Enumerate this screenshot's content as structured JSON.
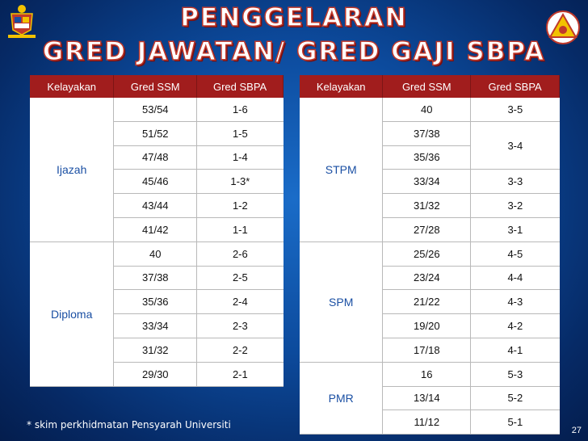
{
  "title": {
    "line1": "PENGGELARAN",
    "line2": "GRED JAWATAN/ GRED GAJI SBPA"
  },
  "headers": [
    "Kelayakan",
    "Gred SSM",
    "Gred SBPA"
  ],
  "left_groups": [
    {
      "qual": "Ijazah",
      "rows": [
        [
          "53/54",
          "1-6"
        ],
        [
          "51/52",
          "1-5"
        ],
        [
          "47/48",
          "1-4"
        ],
        [
          "45/46",
          "1-3*"
        ],
        [
          "43/44",
          "1-2"
        ],
        [
          "41/42",
          "1-1"
        ]
      ]
    },
    {
      "qual": "Diploma",
      "rows": [
        [
          "40",
          "2-6"
        ],
        [
          "37/38",
          "2-5"
        ],
        [
          "35/36",
          "2-4"
        ],
        [
          "33/34",
          "2-3"
        ],
        [
          "31/32",
          "2-2"
        ],
        [
          "29/30",
          "2-1"
        ]
      ]
    }
  ],
  "right_groups": [
    {
      "qual": "STPM",
      "rows": [
        [
          "40",
          "3-5"
        ],
        [
          "37/38",
          "3-4"
        ],
        [
          "35/36",
          ""
        ],
        [
          "33/34",
          "3-3"
        ],
        [
          "31/32",
          "3-2"
        ],
        [
          "27/28",
          "3-1"
        ]
      ]
    },
    {
      "qual": "SPM",
      "rows": [
        [
          "25/26",
          "4-5"
        ],
        [
          "23/24",
          "4-4"
        ],
        [
          "21/22",
          "4-3"
        ],
        [
          "19/20",
          "4-2"
        ],
        [
          "17/18",
          "4-1"
        ]
      ]
    },
    {
      "qual": "PMR",
      "rows": [
        [
          "16",
          "5-3"
        ],
        [
          "13/14",
          "5-2"
        ],
        [
          "11/12",
          "5-1"
        ]
      ]
    }
  ],
  "footnote": "*  skim perkhidmatan Pensyarah Universiti",
  "page_number": "27",
  "colors": {
    "header_bg": "#a11d1d",
    "qual_text": "#1a4fa3",
    "title_outline": "#c0392b"
  },
  "icons": {
    "left": "malaysia-coat-of-arms-icon",
    "right": "agency-logo-icon"
  }
}
